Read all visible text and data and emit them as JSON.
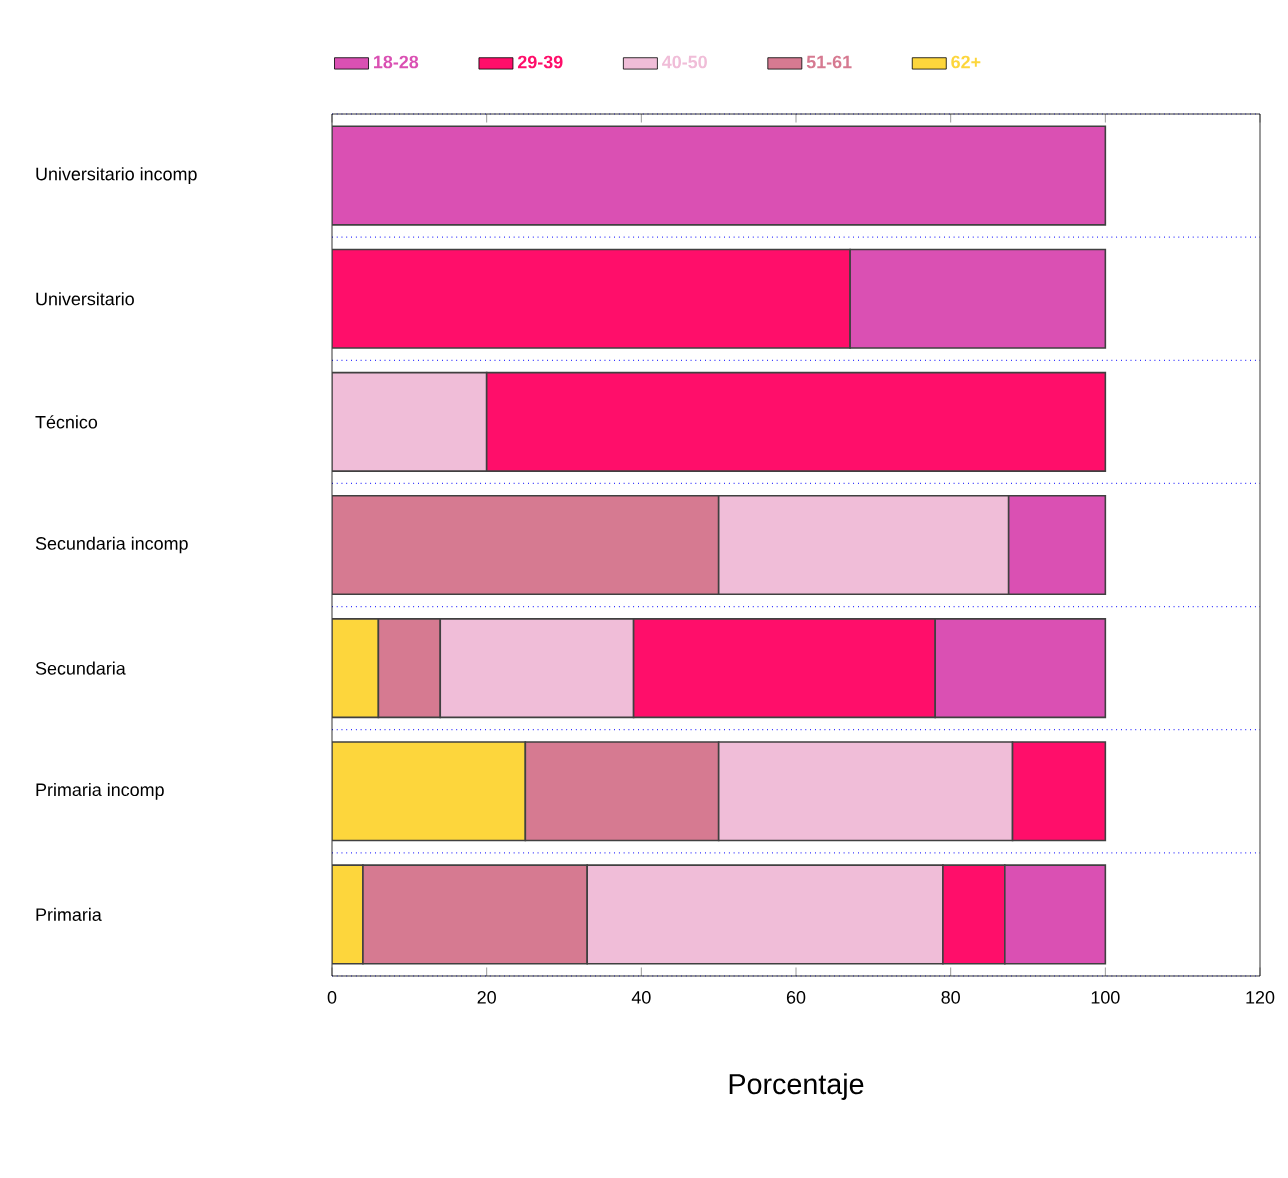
{
  "chart_data": {
    "type": "bar",
    "orientation": "horizontal",
    "stacked": true,
    "xlabel": "Porcentaje",
    "categories": [
      "Universitario incomp",
      "Universitario",
      "Técnico",
      "Secundaria incomp",
      "Secundaria",
      "Primaria incomp",
      "Primaria"
    ],
    "series": [
      {
        "name": "62+",
        "color": "#fdd63c",
        "values": [
          null,
          null,
          null,
          null,
          6,
          25,
          4
        ]
      },
      {
        "name": "51-61",
        "color": "#d67a91",
        "values": [
          null,
          null,
          null,
          50,
          8,
          25,
          29
        ]
      },
      {
        "name": "40-50",
        "color": "#f0bdd8",
        "values": [
          null,
          null,
          20,
          37.5,
          25,
          38,
          46
        ]
      },
      {
        "name": "29-39",
        "color": "#ff0e6a",
        "values": [
          null,
          67,
          80,
          null,
          39,
          12,
          8
        ]
      },
      {
        "name": "18-28",
        "color": "#da50b3",
        "values": [
          100,
          33,
          null,
          12.5,
          22,
          null,
          13
        ]
      }
    ],
    "xlim": [
      0,
      120
    ],
    "xticks": [
      0,
      20,
      40,
      60,
      80,
      100,
      120
    ],
    "grid": "y",
    "legend": "top"
  }
}
